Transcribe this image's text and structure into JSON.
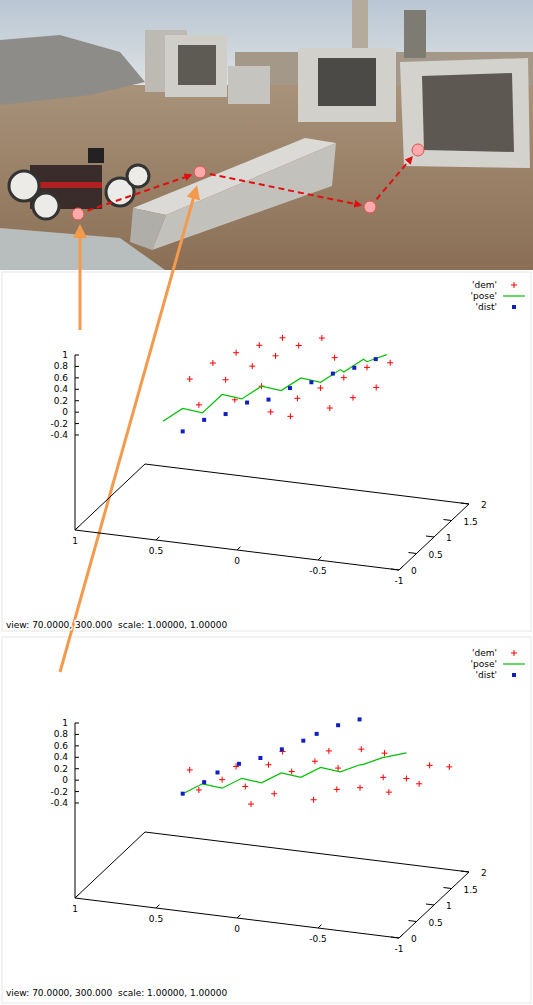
{
  "chart_data": [
    {
      "type": "scatter3d",
      "caption": "view: 70.0000, 300.000  scale: 1.00000, 1.00000",
      "xlim": [
        0,
        2
      ],
      "xticks": [
        0,
        0.5,
        1,
        1.5,
        2
      ],
      "ylim": [
        -1,
        1
      ],
      "yticks": [
        1,
        0.5,
        0,
        -0.5,
        -1
      ],
      "zlim": [
        -0.4,
        1
      ],
      "zticks": [
        -0.4,
        -0.2,
        0,
        0.2,
        0.4,
        0.6,
        0.8,
        1
      ],
      "grid": false,
      "legend": "top-right",
      "series": [
        {
          "name": "'dem'",
          "type": "scatter",
          "marker": "plus",
          "color": "#ff0000",
          "x": [
            0.3,
            0.4,
            0.5,
            0.6,
            0.7,
            0.8,
            0.9,
            1.0,
            1.1,
            1.2,
            1.3,
            1.4,
            0.5,
            0.7,
            0.9,
            1.1,
            1.3,
            1.5,
            0.6,
            0.8,
            1.0,
            1.2,
            1.4,
            1.6
          ],
          "y": [
            0.3,
            0.1,
            -0.1,
            0.2,
            0.0,
            -0.2,
            0.1,
            -0.3,
            0.0,
            -0.4,
            -0.1,
            -0.5,
            0.4,
            0.3,
            0.2,
            0.1,
            0.0,
            -0.2,
            -0.2,
            -0.4,
            -0.5,
            -0.6,
            -0.3,
            -0.6
          ],
          "values": [
            0.2,
            0.3,
            0.1,
            0.5,
            0.4,
            0.2,
            0.6,
            0.3,
            0.7,
            0.4,
            0.8,
            0.5,
            0.5,
            0.7,
            0.8,
            0.85,
            0.9,
            0.85,
            0.0,
            0.1,
            0.2,
            0.3,
            0.6,
            0.5
          ]
        },
        {
          "name": "'pose'",
          "type": "line",
          "line_style": "solid",
          "color": "#00c000",
          "x": [
            0.2,
            0.3,
            0.4,
            0.5,
            0.6,
            0.7,
            0.8,
            0.9,
            1.0,
            1.1,
            1.2,
            1.3,
            1.4,
            1.5
          ],
          "y": [
            0.5,
            0.4,
            0.3,
            0.2,
            0.1,
            0.0,
            -0.1,
            -0.2,
            -0.3,
            -0.4,
            -0.4,
            -0.5,
            -0.5,
            -0.6
          ],
          "values": [
            -0.1,
            0.1,
            0.0,
            0.3,
            0.2,
            0.4,
            0.3,
            0.5,
            0.4,
            0.6,
            0.5,
            0.7,
            0.6,
            0.7
          ]
        },
        {
          "name": "'dist'",
          "type": "scatter",
          "marker": "square",
          "color": "#1020c0",
          "x": [
            0.3,
            0.45,
            0.6,
            0.75,
            0.9,
            1.05,
            1.2,
            1.35,
            1.5,
            1.65
          ],
          "y": [
            0.4,
            0.3,
            0.2,
            0.1,
            0.0,
            -0.1,
            -0.2,
            -0.3,
            -0.4,
            -0.5
          ],
          "values": [
            -0.3,
            -0.15,
            -0.1,
            0.05,
            0.05,
            0.2,
            0.25,
            0.35,
            0.4,
            0.5
          ]
        }
      ]
    },
    {
      "type": "scatter3d",
      "caption": "view: 70.0000, 300.000  scale: 1.00000, 1.00000",
      "xlim": [
        0,
        2
      ],
      "xticks": [
        0,
        0.5,
        1,
        1.5,
        2
      ],
      "ylim": [
        -1,
        1
      ],
      "yticks": [
        1,
        0.5,
        0,
        -0.5,
        -1
      ],
      "zlim": [
        -0.4,
        1
      ],
      "zticks": [
        -0.4,
        -0.2,
        0,
        0.2,
        0.4,
        0.6,
        0.8,
        1
      ],
      "grid": false,
      "legend": "top-right",
      "series": [
        {
          "name": "'dem'",
          "type": "scatter",
          "marker": "plus",
          "color": "#ff0000",
          "x": [
            0.3,
            0.5,
            0.7,
            0.9,
            1.1,
            1.3,
            1.5,
            1.7,
            1.9,
            0.4,
            0.6,
            0.8,
            1.0,
            1.2,
            1.4,
            1.6,
            1.8,
            0.5,
            0.9,
            1.3,
            1.7,
            1.1,
            1.5,
            1.9
          ],
          "y": [
            0.3,
            0.2,
            0.1,
            0.0,
            -0.1,
            -0.2,
            -0.3,
            -0.4,
            -0.5,
            0.0,
            -0.1,
            -0.3,
            -0.4,
            -0.5,
            -0.6,
            -0.7,
            -0.8,
            0.4,
            0.2,
            0.0,
            -0.2,
            -0.7,
            -0.8,
            -0.9
          ],
          "values": [
            -0.1,
            0.0,
            -0.2,
            0.1,
            -0.1,
            0.0,
            -0.2,
            0.05,
            -0.1,
            -0.3,
            -0.2,
            -0.35,
            -0.25,
            -0.3,
            -0.2,
            -0.3,
            -0.15,
            0.1,
            0.0,
            0.1,
            -0.05,
            -0.25,
            -0.3,
            -0.2
          ]
        },
        {
          "name": "'pose'",
          "type": "line",
          "line_style": "solid",
          "color": "#00c000",
          "x": [
            0.3,
            0.4,
            0.5,
            0.6,
            0.7,
            0.8,
            0.9,
            1.0,
            1.1,
            1.2,
            1.3,
            1.4,
            1.5,
            1.6
          ],
          "y": [
            0.4,
            0.3,
            0.2,
            0.1,
            0.0,
            -0.1,
            -0.2,
            -0.3,
            -0.4,
            -0.5,
            -0.5,
            -0.6,
            -0.6,
            -0.7
          ],
          "values": [
            -0.2,
            -0.05,
            -0.15,
            0.0,
            -0.1,
            0.05,
            -0.05,
            0.1,
            0.0,
            0.1,
            0.05,
            0.15,
            0.1,
            0.15
          ]
        },
        {
          "name": "'dist'",
          "type": "scatter",
          "marker": "square",
          "color": "#1020c0",
          "x": [
            0.3,
            0.45,
            0.6,
            0.75,
            0.9,
            1.05,
            1.2,
            1.35,
            1.5,
            1.65
          ],
          "y": [
            0.4,
            0.3,
            0.25,
            0.15,
            0.05,
            -0.05,
            -0.15,
            -0.2,
            -0.3,
            -0.4
          ],
          "values": [
            -0.2,
            -0.05,
            0.05,
            0.15,
            0.2,
            0.3,
            0.4,
            0.45,
            0.55,
            0.6
          ]
        }
      ]
    }
  ]
}
